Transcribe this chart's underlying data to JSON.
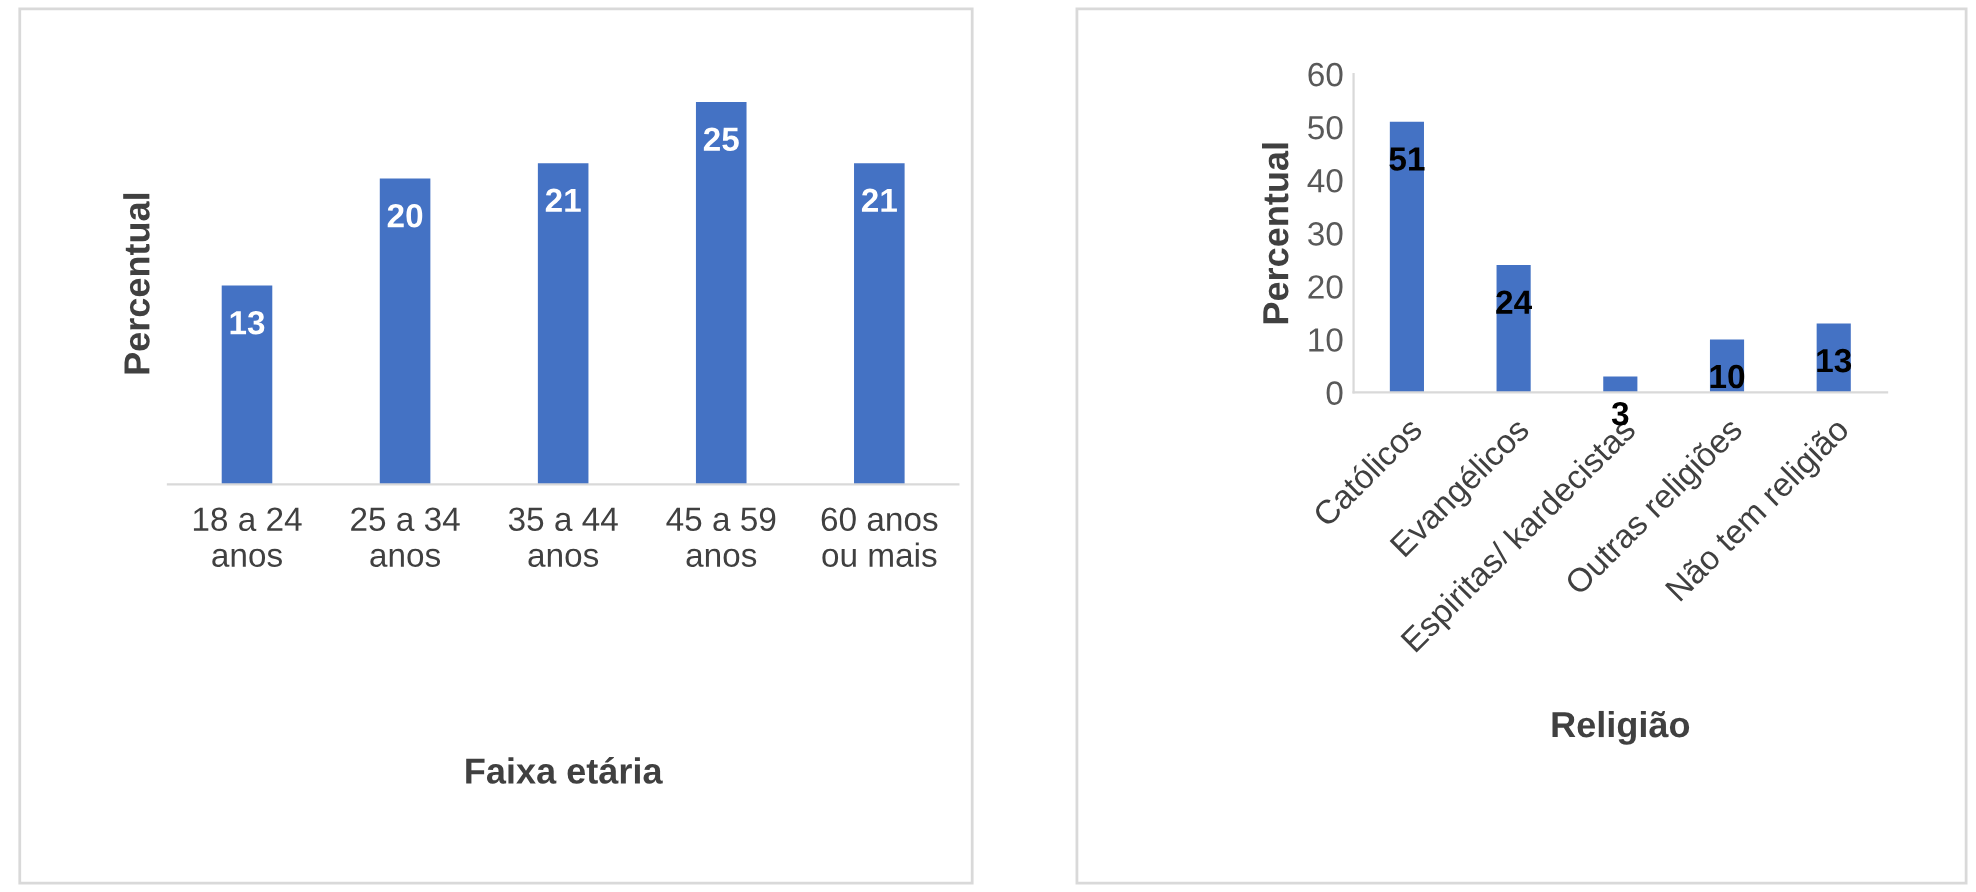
{
  "chart_data": [
    {
      "type": "bar",
      "xlabel": "Faixa etária",
      "ylabel": "Percentual",
      "categories": [
        "18 a 24 anos",
        "25 a 34 anos",
        "35 a 44 anos",
        "45 a 59 anos",
        "60 anos ou mais"
      ],
      "series": [
        {
          "color": "#4472c4",
          "values": [
            13,
            20,
            21,
            25,
            21
          ]
        }
      ],
      "data_labels": true,
      "tick_labels": "x",
      "grid": false,
      "legend": false
    },
    {
      "type": "bar",
      "xlabel": "Religião",
      "ylabel": "Percentual",
      "categories": [
        "Católicos",
        "Evangélicos",
        "Espiritas/ kardecistas",
        "Outras religiões",
        "Não tem religião"
      ],
      "series": [
        {
          "color": "#4472c4",
          "values": [
            51,
            24,
            3,
            10,
            13
          ]
        }
      ],
      "data_labels": true,
      "ylim": [
        0,
        60
      ],
      "yticks": [
        0,
        10,
        20,
        30,
        40,
        50,
        60
      ],
      "grid": false,
      "legend": false
    }
  ]
}
